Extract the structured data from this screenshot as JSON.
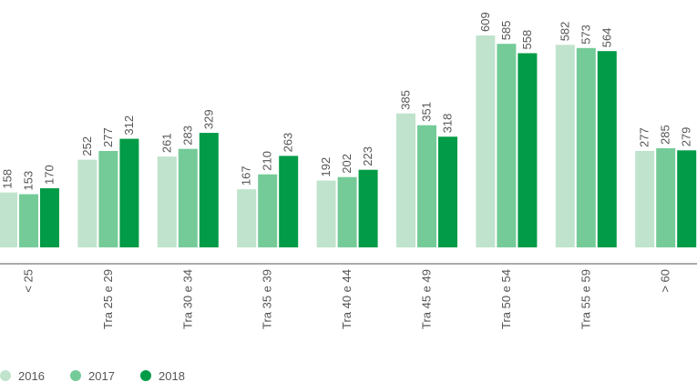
{
  "chart_data": {
    "type": "bar",
    "categories": [
      "< 25",
      "Tra 25 e 29",
      "Tra 30 e 34",
      "Tra 35 e 39",
      "Tra 40 e 44",
      "Tra 45 e 49",
      "Tra 50 e 54",
      "Tra 55 e 59",
      "> 60"
    ],
    "series": [
      {
        "name": "2016",
        "color": "#c0e3cd",
        "values": [
          158,
          252,
          261,
          167,
          192,
          385,
          609,
          582,
          277
        ]
      },
      {
        "name": "2017",
        "color": "#74cb97",
        "values": [
          153,
          277,
          283,
          210,
          202,
          351,
          585,
          573,
          285
        ]
      },
      {
        "name": "2018",
        "color": "#029b47",
        "values": [
          170,
          312,
          329,
          263,
          223,
          318,
          558,
          564,
          279
        ]
      }
    ],
    "ylim": [
      0,
      609
    ],
    "grid": false,
    "legend_position": "bottom-left",
    "axis_color": "#555555",
    "label_color": "#555555"
  }
}
